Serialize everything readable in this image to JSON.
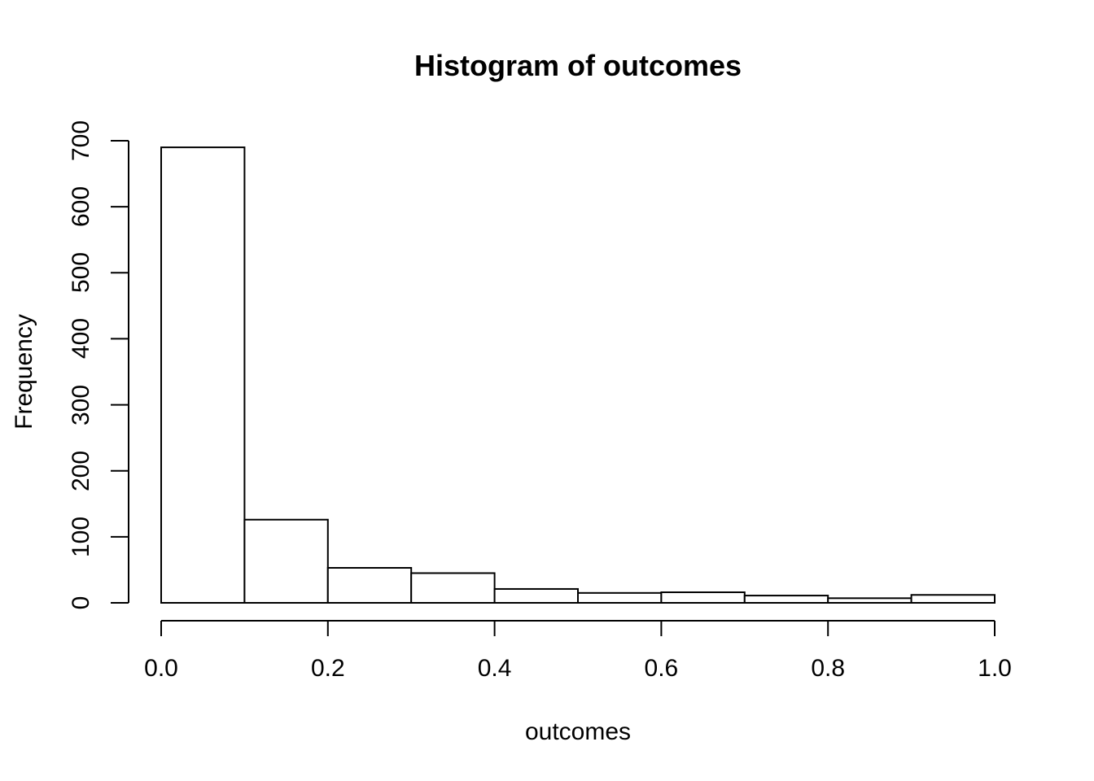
{
  "figure": {
    "background": "#ffffff",
    "line_color": "#000000",
    "text_color": "#000000"
  },
  "chart_data": {
    "type": "bar",
    "subtype": "histogram",
    "title": "Histogram of outcomes",
    "xlabel": "outcomes",
    "ylabel": "Frequency",
    "bin_edges": [
      0.0,
      0.1,
      0.2,
      0.3,
      0.4,
      0.5,
      0.6,
      0.7,
      0.8,
      0.9,
      1.0
    ],
    "values": [
      690,
      126,
      53,
      45,
      21,
      15,
      16,
      11,
      7,
      12
    ],
    "xlim": [
      0.0,
      1.0
    ],
    "ylim": [
      0,
      700
    ],
    "x_tick_values": [
      0.0,
      0.2,
      0.4,
      0.6,
      0.8,
      1.0
    ],
    "x_tick_labels": [
      "0.0",
      "0.2",
      "0.4",
      "0.6",
      "0.8",
      "1.0"
    ],
    "y_tick_values": [
      0,
      100,
      200,
      300,
      400,
      500,
      600,
      700
    ],
    "y_tick_labels": [
      "0",
      "100",
      "200",
      "300",
      "400",
      "500",
      "600",
      "700"
    ],
    "grid": false,
    "legend": null,
    "bar_fill": "#ffffff",
    "bar_stroke": "#000000"
  }
}
